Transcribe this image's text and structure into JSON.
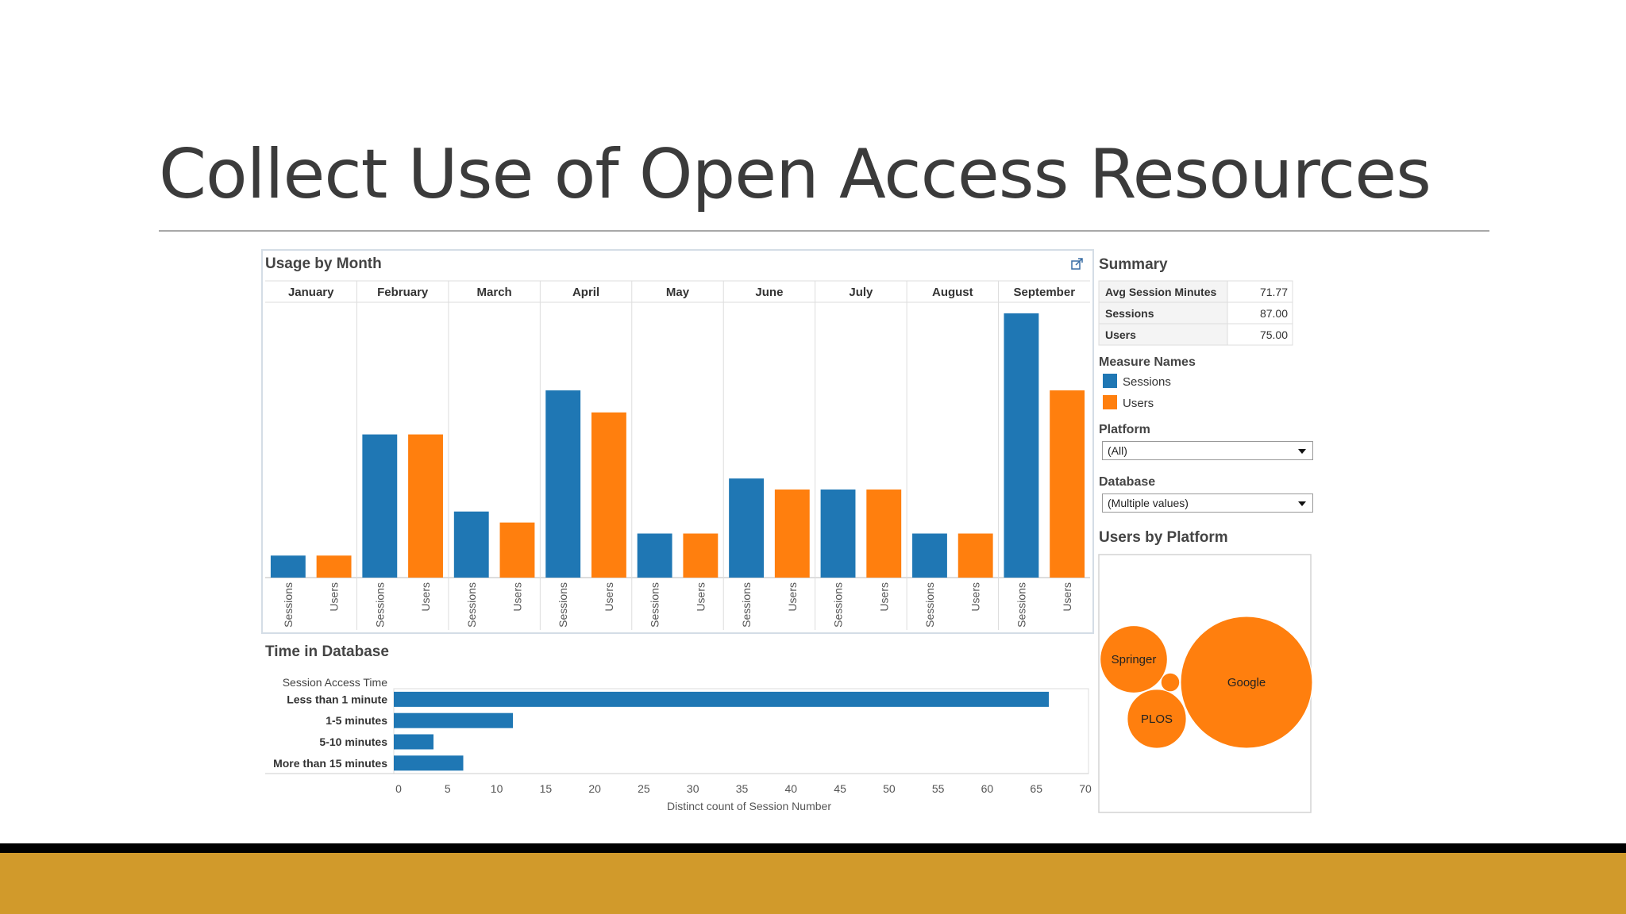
{
  "slide": {
    "title": "Collect Use of Open Access Resources"
  },
  "colors": {
    "sessions": "#1f77b4",
    "users": "#ff7f0e",
    "footer_gold": "#d19a2b"
  },
  "dashboard": {
    "usage_title": "Usage by Month",
    "time_title": "Time in Database",
    "summary_title": "Summary",
    "measure_names_title": "Measure Names",
    "platform_label": "Platform",
    "platform_value": "(All)",
    "database_label": "Database",
    "database_value": "(Multiple values)",
    "users_by_platform_title": "Users by Platform",
    "external_link_icon": "external-link-icon"
  },
  "summary": [
    {
      "label": "Avg Session Minutes",
      "value": "71.77"
    },
    {
      "label": "Sessions",
      "value": "87.00"
    },
    {
      "label": "Users",
      "value": "75.00"
    }
  ],
  "legend": [
    {
      "name": "Sessions",
      "color": "#1f77b4"
    },
    {
      "name": "Users",
      "color": "#ff7f0e"
    }
  ],
  "chart_data": [
    {
      "type": "bar",
      "title": "Usage by Month",
      "categories": [
        "January",
        "February",
        "March",
        "April",
        "May",
        "June",
        "July",
        "August",
        "September"
      ],
      "sub_labels": [
        "Sessions",
        "Users"
      ],
      "series": [
        {
          "name": "Sessions",
          "values": [
            2,
            13,
            6,
            17,
            4,
            9,
            8,
            4,
            24
          ]
        },
        {
          "name": "Users",
          "values": [
            2,
            13,
            5,
            15,
            4,
            8,
            8,
            4,
            17
          ]
        }
      ],
      "ylim": [
        0,
        25
      ],
      "grid": false
    },
    {
      "type": "bar",
      "orientation": "horizontal",
      "title": "Time in Database",
      "category_header": "Session Access Time",
      "categories": [
        "Less than 1 minute",
        "1-5 minutes",
        "5-10 minutes",
        "More than 15 minutes"
      ],
      "values": [
        66,
        12,
        4,
        7
      ],
      "xlabel": "Distinct count of Session Number",
      "xticks": [
        "0",
        "5",
        "10",
        "15",
        "20",
        "25",
        "30",
        "35",
        "40",
        "45",
        "50",
        "55",
        "60",
        "65",
        "70"
      ],
      "xlim": [
        0,
        70
      ]
    },
    {
      "type": "bubble",
      "title": "Users by Platform",
      "items": [
        {
          "label": "Google",
          "value": 50
        },
        {
          "label": "Springer",
          "value": 13
        },
        {
          "label": "PLOS",
          "value": 10
        },
        {
          "label": "",
          "value": 1
        }
      ]
    }
  ]
}
